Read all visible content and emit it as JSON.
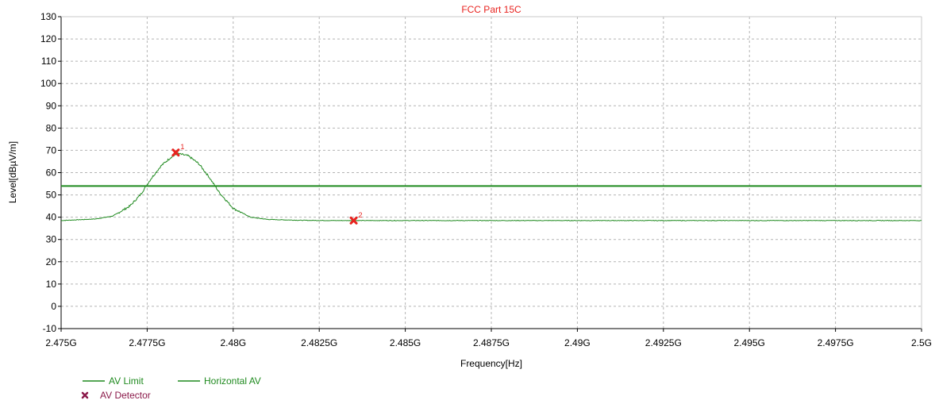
{
  "chart_data": {
    "type": "line",
    "title": "FCC Part 15C",
    "xlabel": "Frequency[Hz]",
    "ylabel": "Level[dBµV/m]",
    "xlim": [
      2.475,
      2.5
    ],
    "ylim": [
      -10,
      130
    ],
    "x_ticks": [
      2.475,
      2.4775,
      2.48,
      2.4825,
      2.485,
      2.4875,
      2.49,
      2.4925,
      2.495,
      2.4975,
      2.5
    ],
    "x_tick_labels": [
      "2.475G",
      "2.4775G",
      "2.48G",
      "2.4825G",
      "2.485G",
      "2.4875G",
      "2.49G",
      "2.4925G",
      "2.495G",
      "2.4975G",
      "2.5G"
    ],
    "y_ticks": [
      -10,
      0,
      10,
      20,
      30,
      40,
      50,
      60,
      70,
      80,
      90,
      100,
      110,
      120,
      130
    ],
    "grid": true,
    "legend_position": "bottom-left",
    "series": [
      {
        "name": "AV Limit",
        "color": "#1f8a1f",
        "x": [
          2.475,
          2.5
        ],
        "y": [
          54,
          54
        ]
      },
      {
        "name": "Horizontal AV",
        "color": "#1f8a1f",
        "x": [
          2.475,
          2.476,
          2.4765,
          2.477,
          2.4773,
          2.4776,
          2.4779,
          2.4782,
          2.4784,
          2.4787,
          2.479,
          2.4793,
          2.4796,
          2.48,
          2.4805,
          2.481,
          2.482,
          2.483,
          2.4835,
          2.485,
          2.4875,
          2.49,
          2.4925,
          2.495,
          2.4975,
          2.5
        ],
        "y": [
          38.5,
          39.2,
          40.5,
          45,
          50,
          57,
          63,
          67,
          68.5,
          67.5,
          64,
          58,
          51,
          44,
          40,
          39,
          38.6,
          38.5,
          38.5,
          38.5,
          38.5,
          38.5,
          38.5,
          38.5,
          38.5,
          38.5
        ]
      },
      {
        "name": "AV Detector",
        "type": "scatter",
        "color": "#e8231f",
        "points": [
          {
            "label": "1",
            "x": 2.47833,
            "y": 69
          },
          {
            "label": "2",
            "x": 2.4835,
            "y": 38.5
          }
        ]
      }
    ],
    "legend": {
      "items": [
        {
          "label": "AV Limit",
          "color": "#1f8a1f",
          "symbol": "line"
        },
        {
          "label": "Horizontal AV",
          "color": "#1f8a1f",
          "symbol": "line"
        },
        {
          "label": "AV Detector",
          "color": "#8b1a4a",
          "symbol": "x-marker"
        }
      ]
    }
  }
}
